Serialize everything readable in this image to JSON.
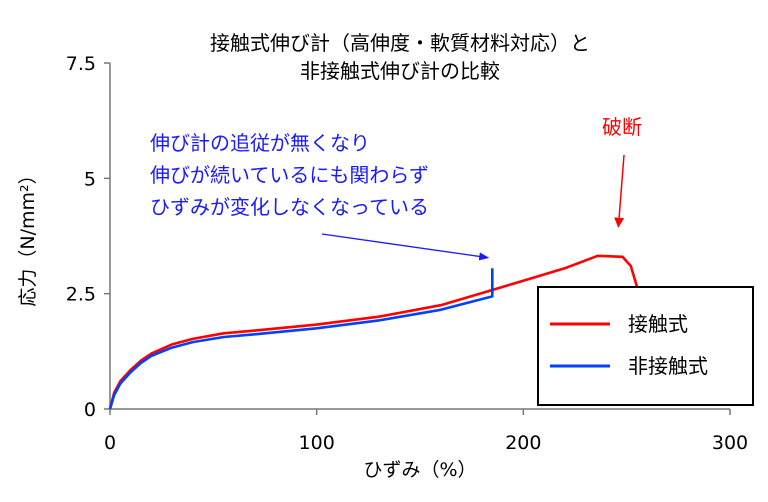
{
  "chart_data": {
    "type": "line",
    "title_lines": [
      "接触式伸び計（高伸度・軟質材料対応）と",
      "非接触式伸び計の比較"
    ],
    "xlabel": "ひずみ（%）",
    "ylabel": "応力（N/mm²）",
    "xlim": [
      0,
      300
    ],
    "ylim": [
      0,
      7.5
    ],
    "x_ticks": [
      0,
      100,
      200,
      300
    ],
    "x_tick_labels": [
      "0",
      "100",
      "200",
      "300"
    ],
    "y_ticks": [
      0,
      2.5,
      5,
      7.5
    ],
    "y_tick_labels": [
      "0",
      "2.5",
      "5",
      "7.5"
    ],
    "grid": false,
    "legend_position": "bottom-right",
    "series": [
      {
        "name": "接触式",
        "color": "#ff0000",
        "points": [
          [
            0,
            0
          ],
          [
            2,
            0.35
          ],
          [
            5,
            0.6
          ],
          [
            10,
            0.85
          ],
          [
            15,
            1.05
          ],
          [
            20,
            1.2
          ],
          [
            30,
            1.4
          ],
          [
            40,
            1.52
          ],
          [
            55,
            1.64
          ],
          [
            70,
            1.7
          ],
          [
            100,
            1.83
          ],
          [
            130,
            2.0
          ],
          [
            160,
            2.25
          ],
          [
            185,
            2.58
          ],
          [
            200,
            2.78
          ],
          [
            220,
            3.05
          ],
          [
            236,
            3.32
          ],
          [
            248,
            3.3
          ],
          [
            252,
            3.1
          ],
          [
            256,
            2.5
          ]
        ]
      },
      {
        "name": "非接触式",
        "color": "#0040ff",
        "points": [
          [
            0,
            0
          ],
          [
            2,
            0.3
          ],
          [
            5,
            0.55
          ],
          [
            10,
            0.8
          ],
          [
            15,
            1.0
          ],
          [
            20,
            1.15
          ],
          [
            30,
            1.33
          ],
          [
            40,
            1.45
          ],
          [
            55,
            1.56
          ],
          [
            70,
            1.62
          ],
          [
            100,
            1.75
          ],
          [
            130,
            1.92
          ],
          [
            160,
            2.15
          ],
          [
            185,
            2.44
          ],
          [
            185,
            3.05
          ]
        ]
      }
    ],
    "annotations": [
      {
        "id": "slip",
        "lines": [
          "伸び計の追従が無くなり",
          "伸びが続いているにも関わらず",
          "ひずみが変化しなくなっている"
        ],
        "color": "#1a1aff",
        "arrow_to": [
          183,
          3.28
        ]
      },
      {
        "id": "break",
        "lines": [
          "破断"
        ],
        "color": "#ff0000",
        "arrow_to": [
          246,
          3.95
        ]
      }
    ]
  }
}
